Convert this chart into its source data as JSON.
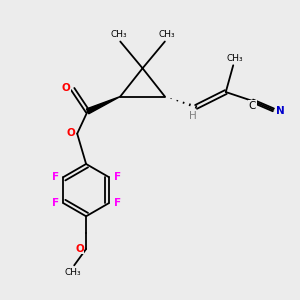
{
  "bg_color": "#ececec",
  "bond_color": "#000000",
  "O_color": "#ff0000",
  "F_color": "#ff00ff",
  "N_color": "#0000cd",
  "H_color": "#808080",
  "lw": 1.3,
  "fs_label": 7.5,
  "fs_small": 6.5,
  "xlim": [
    0,
    10
  ],
  "ylim": [
    0,
    10
  ]
}
